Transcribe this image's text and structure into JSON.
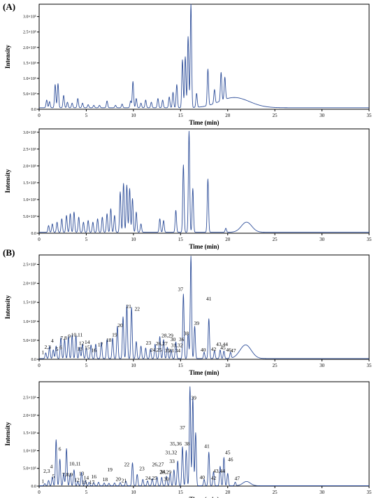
{
  "panel_labels": {
    "a": "(A)",
    "b": "(B)"
  },
  "chart_data": [
    {
      "type": "line",
      "xlabel": "Time (min)",
      "ylabel": "Intensity",
      "xlim": [
        0,
        35
      ],
      "ylim": [
        0,
        340000
      ],
      "x_ticks": [
        0,
        5,
        10,
        15,
        20,
        25,
        30,
        35
      ],
      "y_ticks": [
        {
          "value": 0,
          "label": "0.0"
        },
        {
          "value": 50000,
          "label": "5.0×10⁴"
        },
        {
          "value": 100000,
          "label": "1.0×10⁵"
        },
        {
          "value": 150000,
          "label": "1.5×10⁵"
        },
        {
          "value": 200000,
          "label": "2.0×10⁵"
        },
        {
          "value": 250000,
          "label": "2.5×10⁵"
        },
        {
          "value": 300000,
          "label": "3.0×10⁵"
        }
      ],
      "baseline": 5000,
      "hump": {
        "center": 20.7,
        "width": 1.6,
        "height": 33000
      },
      "peaks": [
        [
          0.8,
          25000
        ],
        [
          1.1,
          20000
        ],
        [
          1.7,
          75000
        ],
        [
          2.0,
          78000
        ],
        [
          2.6,
          40000
        ],
        [
          3.0,
          18000
        ],
        [
          3.5,
          15000
        ],
        [
          4.1,
          30000
        ],
        [
          4.6,
          15000
        ],
        [
          5.2,
          10000
        ],
        [
          5.8,
          8000
        ],
        [
          6.4,
          8000
        ],
        [
          7.2,
          22000
        ],
        [
          8.1,
          8000
        ],
        [
          8.8,
          12000
        ],
        [
          9.7,
          22000
        ],
        [
          9.95,
          85000
        ],
        [
          10.3,
          30000
        ],
        [
          10.8,
          15000
        ],
        [
          11.3,
          25000
        ],
        [
          11.9,
          18000
        ],
        [
          12.6,
          30000
        ],
        [
          13.1,
          25000
        ],
        [
          13.8,
          35000
        ],
        [
          14.2,
          50000
        ],
        [
          14.6,
          75000
        ],
        [
          15.2,
          155000
        ],
        [
          15.5,
          165000
        ],
        [
          15.8,
          230000
        ],
        [
          16.1,
          335000
        ],
        [
          16.7,
          45000
        ],
        [
          17.9,
          118000
        ],
        [
          18.6,
          45000
        ],
        [
          19.3,
          92000
        ],
        [
          19.7,
          72000
        ]
      ]
    },
    {
      "type": "line",
      "xlabel": "Time (min)",
      "ylabel": "Intensity",
      "xlim": [
        0,
        35
      ],
      "ylim": [
        0,
        310000
      ],
      "x_ticks": [
        0,
        5,
        10,
        15,
        20,
        25,
        30,
        35
      ],
      "y_ticks": [
        {
          "value": 0,
          "label": "0.0"
        },
        {
          "value": 50000,
          "label": "5.0×10⁴"
        },
        {
          "value": 100000,
          "label": "1.0×10⁵"
        },
        {
          "value": 150000,
          "label": "1.5×10⁵"
        },
        {
          "value": 200000,
          "label": "2.0×10⁵"
        },
        {
          "value": 250000,
          "label": "2.5×10⁵"
        },
        {
          "value": 300000,
          "label": "3.0×10⁵"
        }
      ],
      "baseline": 3000,
      "hump": {
        "center": 22.0,
        "width": 0.55,
        "height": 30000
      },
      "peaks": [
        [
          1.0,
          20000
        ],
        [
          1.4,
          25000
        ],
        [
          1.9,
          30000
        ],
        [
          2.4,
          40000
        ],
        [
          2.9,
          50000
        ],
        [
          3.3,
          55000
        ],
        [
          3.7,
          60000
        ],
        [
          4.2,
          45000
        ],
        [
          4.7,
          30000
        ],
        [
          5.2,
          35000
        ],
        [
          5.7,
          30000
        ],
        [
          6.2,
          40000
        ],
        [
          6.7,
          45000
        ],
        [
          7.2,
          55000
        ],
        [
          7.6,
          70000
        ],
        [
          8.0,
          50000
        ],
        [
          8.6,
          120000
        ],
        [
          8.95,
          145000
        ],
        [
          9.3,
          140000
        ],
        [
          9.6,
          130000
        ],
        [
          9.9,
          100000
        ],
        [
          10.3,
          60000
        ],
        [
          10.8,
          25000
        ],
        [
          12.8,
          40000
        ],
        [
          13.2,
          35000
        ],
        [
          14.5,
          65000
        ],
        [
          15.3,
          200000
        ],
        [
          15.9,
          300000
        ],
        [
          16.3,
          130000
        ],
        [
          17.9,
          158000
        ],
        [
          19.8,
          12000
        ]
      ]
    },
    {
      "type": "line",
      "xlabel": "Time (min)",
      "ylabel": "Intensity",
      "xlim": [
        0,
        35
      ],
      "ylim": [
        0,
        2750000
      ],
      "x_ticks": [
        0,
        5,
        10,
        15,
        20,
        25,
        30,
        35
      ],
      "y_ticks": [
        {
          "value": 0,
          "label": "0.0"
        },
        {
          "value": 500000,
          "label": "5.0×10⁵"
        },
        {
          "value": 1000000,
          "label": "1.0×10⁶"
        },
        {
          "value": 1500000,
          "label": "1.5×10⁶"
        },
        {
          "value": 2000000,
          "label": "2.0×10⁶"
        },
        {
          "value": 2500000,
          "label": "2.5×10⁶"
        }
      ],
      "baseline": 20000,
      "hump": {
        "center": 21.9,
        "width": 0.6,
        "height": 360000
      },
      "peaks": [
        [
          0.7,
          150000
        ],
        [
          1.1,
          320000
        ],
        [
          1.5,
          230000
        ],
        [
          1.8,
          330000
        ],
        [
          2.3,
          550000
        ],
        [
          2.7,
          500000
        ],
        [
          3.1,
          580000
        ],
        [
          3.5,
          620000
        ],
        [
          3.9,
          600000
        ],
        [
          4.3,
          300000
        ],
        [
          4.6,
          380000
        ],
        [
          5.0,
          280000
        ],
        [
          5.5,
          360000
        ],
        [
          6.0,
          380000
        ],
        [
          6.6,
          430000
        ],
        [
          7.2,
          500000
        ],
        [
          7.8,
          540000
        ],
        [
          8.3,
          850000
        ],
        [
          8.9,
          1100000
        ],
        [
          9.3,
          1400000
        ],
        [
          9.8,
          1350000
        ],
        [
          10.3,
          450000
        ],
        [
          10.8,
          330000
        ],
        [
          11.3,
          280000
        ],
        [
          11.8,
          250000
        ],
        [
          12.3,
          380000
        ],
        [
          12.8,
          580000
        ],
        [
          13.2,
          500000
        ],
        [
          13.6,
          300000
        ],
        [
          14.0,
          230000
        ],
        [
          14.5,
          440000
        ],
        [
          15.3,
          1700000
        ],
        [
          15.8,
          650000
        ],
        [
          16.1,
          2700000
        ],
        [
          16.5,
          850000
        ],
        [
          17.5,
          170000
        ],
        [
          18.0,
          1050000
        ],
        [
          18.6,
          210000
        ],
        [
          19.2,
          230000
        ],
        [
          19.6,
          200000
        ],
        [
          20.3,
          160000
        ]
      ],
      "peak_labels": [
        {
          "text": "1",
          "x": 0.4,
          "y": 140000
        },
        {
          "text": "2,3",
          "x": 0.9,
          "y": 280000
        },
        {
          "text": "4",
          "x": 1.4,
          "y": 440000
        },
        {
          "text": "5",
          "x": 1.9,
          "y": 220000
        },
        {
          "text": "6",
          "x": 2.3,
          "y": 270000
        },
        {
          "text": "7,8",
          "x": 2.6,
          "y": 520000
        },
        {
          "text": "9",
          "x": 3.2,
          "y": 560000
        },
        {
          "text": "10,11",
          "x": 4.0,
          "y": 600000
        },
        {
          "text": "12",
          "x": 4.5,
          "y": 380000
        },
        {
          "text": "13",
          "x": 4.3,
          "y": 230000
        },
        {
          "text": "14",
          "x": 5.1,
          "y": 410000
        },
        {
          "text": "15",
          "x": 5.1,
          "y": 270000
        },
        {
          "text": "16",
          "x": 5.8,
          "y": 190000
        },
        {
          "text": "17",
          "x": 6.5,
          "y": 340000
        },
        {
          "text": "18",
          "x": 7.4,
          "y": 460000
        },
        {
          "text": "19",
          "x": 8.0,
          "y": 600000
        },
        {
          "text": "20",
          "x": 8.6,
          "y": 850000
        },
        {
          "text": "21",
          "x": 9.5,
          "y": 1350000
        },
        {
          "text": "22",
          "x": 10.4,
          "y": 1280000
        },
        {
          "text": "23",
          "x": 11.6,
          "y": 390000
        },
        {
          "text": "24,25",
          "x": 12.4,
          "y": 200000
        },
        {
          "text": "26,27",
          "x": 13.0,
          "y": 370000
        },
        {
          "text": "28,29",
          "x": 13.6,
          "y": 580000
        },
        {
          "text": "30",
          "x": 14.2,
          "y": 480000
        },
        {
          "text": "31,32",
          "x": 14.6,
          "y": 320000
        },
        {
          "text": "33",
          "x": 14.0,
          "y": 180000
        },
        {
          "text": "34",
          "x": 14.7,
          "y": 180000
        },
        {
          "text": "35",
          "x": 13.6,
          "y": 180000
        },
        {
          "text": "36",
          "x": 15.1,
          "y": 480000
        },
        {
          "text": "37",
          "x": 15.0,
          "y": 1800000
        },
        {
          "text": "38",
          "x": 15.6,
          "y": 640000
        },
        {
          "text": "39",
          "x": 16.7,
          "y": 900000
        },
        {
          "text": "40",
          "x": 17.4,
          "y": 200000
        },
        {
          "text": "41",
          "x": 18.0,
          "y": 1550000
        },
        {
          "text": "42",
          "x": 18.5,
          "y": 220000
        },
        {
          "text": "43,44",
          "x": 19.4,
          "y": 350000
        },
        {
          "text": "45",
          "x": 19.5,
          "y": 260000
        },
        {
          "text": "46",
          "x": 20.1,
          "y": 200000
        },
        {
          "text": "47",
          "x": 20.6,
          "y": 180000
        }
      ]
    },
    {
      "type": "line",
      "xlabel": "Time (min)",
      "ylabel": "Intensity",
      "xlim": [
        0,
        35
      ],
      "ylim": [
        0,
        2950000
      ],
      "x_ticks": [
        0,
        5,
        10,
        15,
        20,
        25,
        30,
        35
      ],
      "y_ticks": [
        {
          "value": 0,
          "label": "0.0"
        },
        {
          "value": 500000,
          "label": "5.0×10⁵"
        },
        {
          "value": 1000000,
          "label": "1.0×10⁶"
        },
        {
          "value": 1500000,
          "label": "1.5×10⁶"
        },
        {
          "value": 2000000,
          "label": "2.0×10⁶"
        },
        {
          "value": 2500000,
          "label": "2.5×10⁶"
        }
      ],
      "baseline": 10000,
      "hump": {
        "center": 22.0,
        "width": 0.4,
        "height": 120000
      },
      "peaks": [
        [
          0.6,
          60000
        ],
        [
          1.0,
          150000
        ],
        [
          1.4,
          250000
        ],
        [
          1.8,
          1300000
        ],
        [
          2.2,
          750000
        ],
        [
          2.6,
          350000
        ],
        [
          2.9,
          1050000
        ],
        [
          3.3,
          350000
        ],
        [
          3.7,
          450000
        ],
        [
          4.1,
          120000
        ],
        [
          4.5,
          380000
        ],
        [
          4.9,
          150000
        ],
        [
          5.3,
          100000
        ],
        [
          5.8,
          90000
        ],
        [
          6.3,
          100000
        ],
        [
          6.9,
          80000
        ],
        [
          7.4,
          70000
        ],
        [
          8.0,
          80000
        ],
        [
          8.6,
          90000
        ],
        [
          9.2,
          130000
        ],
        [
          9.9,
          650000
        ],
        [
          10.4,
          320000
        ],
        [
          11.0,
          180000
        ],
        [
          11.5,
          140000
        ],
        [
          12.0,
          200000
        ],
        [
          12.5,
          250000
        ],
        [
          13.0,
          240000
        ],
        [
          13.5,
          270000
        ],
        [
          13.9,
          350000
        ],
        [
          14.3,
          450000
        ],
        [
          14.7,
          700000
        ],
        [
          15.2,
          1100000
        ],
        [
          15.6,
          1000000
        ],
        [
          16.0,
          2800000
        ],
        [
          16.3,
          2500000
        ],
        [
          16.6,
          1500000
        ],
        [
          17.5,
          180000
        ],
        [
          18.0,
          950000
        ],
        [
          18.5,
          400000
        ],
        [
          19.2,
          550000
        ],
        [
          19.6,
          800000
        ],
        [
          20.0,
          350000
        ],
        [
          20.8,
          100000
        ]
      ],
      "peak_labels": [
        {
          "text": "1",
          "x": 0.4,
          "y": 90000
        },
        {
          "text": "2,3",
          "x": 0.8,
          "y": 380000
        },
        {
          "text": "4",
          "x": 1.3,
          "y": 500000
        },
        {
          "text": "5",
          "x": 1.5,
          "y": 230000
        },
        {
          "text": "6",
          "x": 2.2,
          "y": 1000000
        },
        {
          "text": "7,8,9",
          "x": 3.0,
          "y": 280000
        },
        {
          "text": "10,11",
          "x": 3.8,
          "y": 580000
        },
        {
          "text": "12",
          "x": 4.0,
          "y": 130000
        },
        {
          "text": "13",
          "x": 4.5,
          "y": 310000
        },
        {
          "text": "14",
          "x": 5.0,
          "y": 190000
        },
        {
          "text": "15",
          "x": 4.8,
          "y": 60000
        },
        {
          "text": "16",
          "x": 5.8,
          "y": 220000
        },
        {
          "text": "17",
          "x": 5.6,
          "y": 60000
        },
        {
          "text": "18",
          "x": 7.0,
          "y": 140000
        },
        {
          "text": "19",
          "x": 7.5,
          "y": 420000
        },
        {
          "text": "20",
          "x": 8.4,
          "y": 150000
        },
        {
          "text": "21",
          "x": 9.0,
          "y": 110000
        },
        {
          "text": "22",
          "x": 9.3,
          "y": 560000
        },
        {
          "text": "23",
          "x": 10.9,
          "y": 450000
        },
        {
          "text": "24,25",
          "x": 11.9,
          "y": 180000
        },
        {
          "text": "26,27",
          "x": 12.6,
          "y": 560000
        },
        {
          "text": "28,29",
          "x": 13.4,
          "y": 350000
        },
        {
          "text": "30",
          "x": 13.5,
          "y": 150000
        },
        {
          "text": "31,32",
          "x": 14.0,
          "y": 900000
        },
        {
          "text": "33",
          "x": 14.1,
          "y": 650000
        },
        {
          "text": "34",
          "x": 13.1,
          "y": 360000
        },
        {
          "text": "35,36",
          "x": 14.5,
          "y": 1150000
        },
        {
          "text": "37",
          "x": 15.2,
          "y": 1600000
        },
        {
          "text": "38",
          "x": 15.7,
          "y": 1150000
        },
        {
          "text": "39",
          "x": 16.4,
          "y": 2450000
        },
        {
          "text": "40",
          "x": 17.3,
          "y": 200000
        },
        {
          "text": "41",
          "x": 17.8,
          "y": 1080000
        },
        {
          "text": "42",
          "x": 18.5,
          "y": 180000
        },
        {
          "text": "43,44",
          "x": 19.1,
          "y": 380000
        },
        {
          "text": "45",
          "x": 20.0,
          "y": 900000
        },
        {
          "text": "46",
          "x": 20.3,
          "y": 700000
        },
        {
          "text": "47",
          "x": 21.0,
          "y": 170000
        }
      ]
    }
  ]
}
